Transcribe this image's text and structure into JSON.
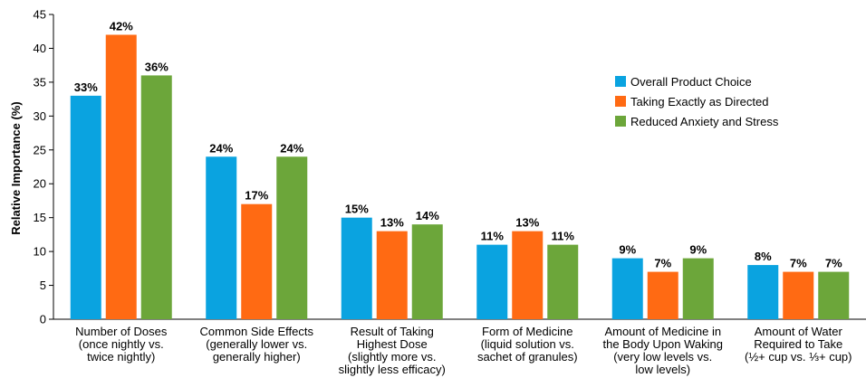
{
  "chart_data": {
    "type": "bar",
    "ylabel": "Relative Importance (%)",
    "ylim": [
      0,
      45
    ],
    "yticks": [
      0,
      5,
      10,
      15,
      20,
      25,
      30,
      35,
      40,
      45
    ],
    "categories": [
      [
        "Number of Doses",
        "(once nightly vs.",
        "twice nightly)"
      ],
      [
        "Common Side Effects",
        "(generally lower vs.",
        "generally higher)"
      ],
      [
        "Result of Taking",
        "Highest Dose",
        "(slightly more vs.",
        "slightly less efficacy)"
      ],
      [
        "Form of Medicine",
        "(liquid solution vs.",
        "sachet of granules)"
      ],
      [
        "Amount of Medicine in",
        "the Body Upon Waking",
        "(very low levels vs.",
        "low levels)"
      ],
      [
        "Amount of Water",
        "Required to Take",
        "(½+ cup vs. ⅓+ cup)"
      ]
    ],
    "series": [
      {
        "name": "Overall Product Choice",
        "color": "#0aa3e0",
        "values": [
          33,
          24,
          15,
          11,
          9,
          8
        ],
        "labels": [
          "33%",
          "24%",
          "15%",
          "11%",
          "9%",
          "8%"
        ]
      },
      {
        "name": "Taking Exactly as Directed",
        "color": "#ff6a13",
        "values": [
          42,
          17,
          13,
          13,
          7,
          7
        ],
        "labels": [
          "42%",
          "17%",
          "13%",
          "13%",
          "7%",
          "7%"
        ]
      },
      {
        "name": "Reduced Anxiety and Stress",
        "color": "#6ca63a",
        "values": [
          36,
          24,
          14,
          11,
          9,
          7
        ],
        "labels": [
          "36%",
          "24%",
          "14%",
          "11%",
          "9%",
          "7%"
        ]
      }
    ],
    "legend_position": "top-right",
    "grid": false
  }
}
